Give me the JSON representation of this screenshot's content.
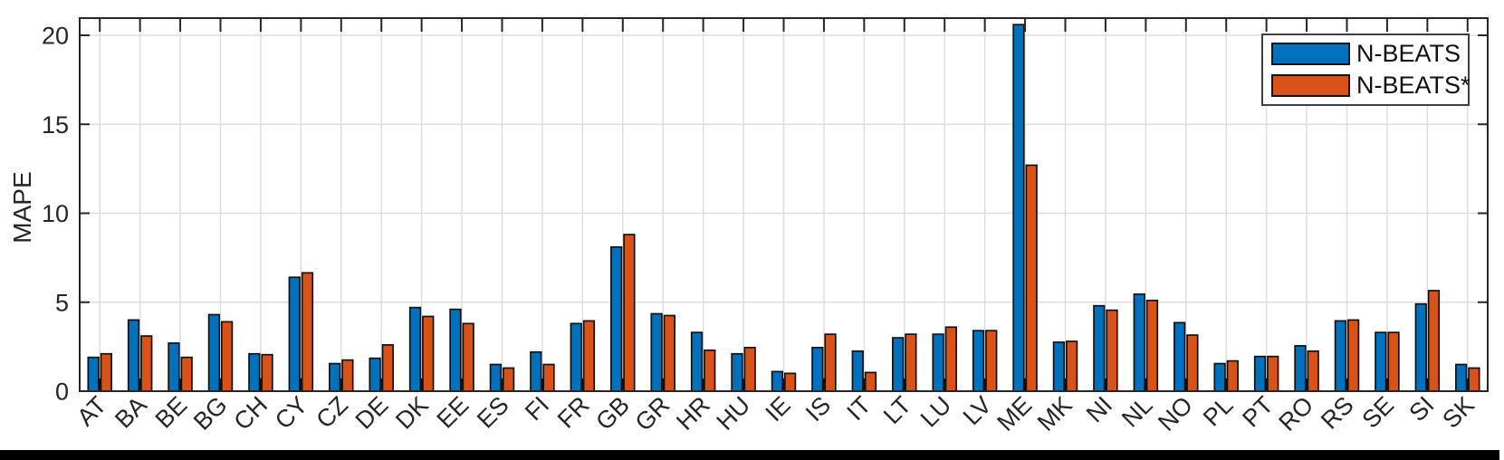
{
  "chart_data": {
    "type": "bar",
    "title": "",
    "xlabel": "",
    "ylabel": "MAPE",
    "ylim": [
      0,
      21
    ],
    "yticks": [
      0,
      5,
      10,
      15,
      20
    ],
    "grid": true,
    "legend_position": "top-right",
    "categories": [
      "AT",
      "BA",
      "BE",
      "BG",
      "CH",
      "CY",
      "CZ",
      "DE",
      "DK",
      "EE",
      "ES",
      "FI",
      "FR",
      "GB",
      "GR",
      "HR",
      "HU",
      "IE",
      "IS",
      "IT",
      "LT",
      "LU",
      "LV",
      "ME",
      "MK",
      "NI",
      "NL",
      "NO",
      "PL",
      "PT",
      "RO",
      "RS",
      "SE",
      "SI",
      "SK"
    ],
    "series": [
      {
        "name": "N-BEATS",
        "color": "#0072BD",
        "values": [
          1.9,
          4.0,
          2.7,
          4.3,
          2.1,
          6.4,
          1.55,
          1.85,
          4.7,
          4.6,
          1.5,
          2.2,
          3.8,
          8.1,
          4.35,
          3.3,
          2.1,
          1.1,
          2.45,
          2.25,
          3.0,
          3.2,
          3.4,
          20.6,
          2.75,
          4.8,
          5.45,
          3.85,
          1.55,
          1.95,
          2.55,
          3.95,
          3.3,
          4.9,
          1.5
        ]
      },
      {
        "name": "N-BEATS*",
        "color": "#D95319",
        "values": [
          2.1,
          3.1,
          1.9,
          3.9,
          2.05,
          6.65,
          1.75,
          2.6,
          4.2,
          3.8,
          1.3,
          1.5,
          3.95,
          8.8,
          4.25,
          2.3,
          2.45,
          1.0,
          3.2,
          1.05,
          3.2,
          3.6,
          3.4,
          12.7,
          2.8,
          4.55,
          5.1,
          3.15,
          1.7,
          1.95,
          2.25,
          4.0,
          3.3,
          5.65,
          1.3
        ]
      }
    ]
  },
  "style_colors": {
    "bar_edge": "#111111",
    "axis_frame": "#262626",
    "grid_line": "#DEDEDE",
    "tick_label": "#262626"
  }
}
